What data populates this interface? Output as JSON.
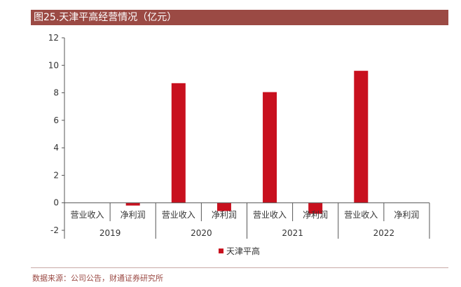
{
  "header": {
    "title": "图25.天津平高经营情况（亿元）"
  },
  "footer": {
    "source": "数据来源：公司公告，财通证券研究所"
  },
  "chart_data": {
    "type": "bar",
    "title": "图25.天津平高经营情况（亿元）",
    "xlabel": "",
    "ylabel": "",
    "ylim": [
      -2,
      12
    ],
    "yticks": [
      -2,
      0,
      2,
      4,
      6,
      8,
      10,
      12
    ],
    "grid": false,
    "legend_position": "bottom",
    "groups": [
      "2019",
      "2020",
      "2021",
      "2022"
    ],
    "subcategories": [
      "营业收入",
      "净利润"
    ],
    "categories": [
      "营业收入",
      "净利润",
      "营业收入",
      "净利润",
      "营业收入",
      "净利润",
      "营业收入",
      "净利润"
    ],
    "series": [
      {
        "name": "天津平高",
        "values": [
          null,
          -0.2,
          8.7,
          -0.6,
          8.05,
          -0.8,
          9.6,
          null
        ]
      }
    ],
    "colors": {
      "bar": "#c8101e",
      "axis": "#555555",
      "text": "#333333"
    }
  }
}
